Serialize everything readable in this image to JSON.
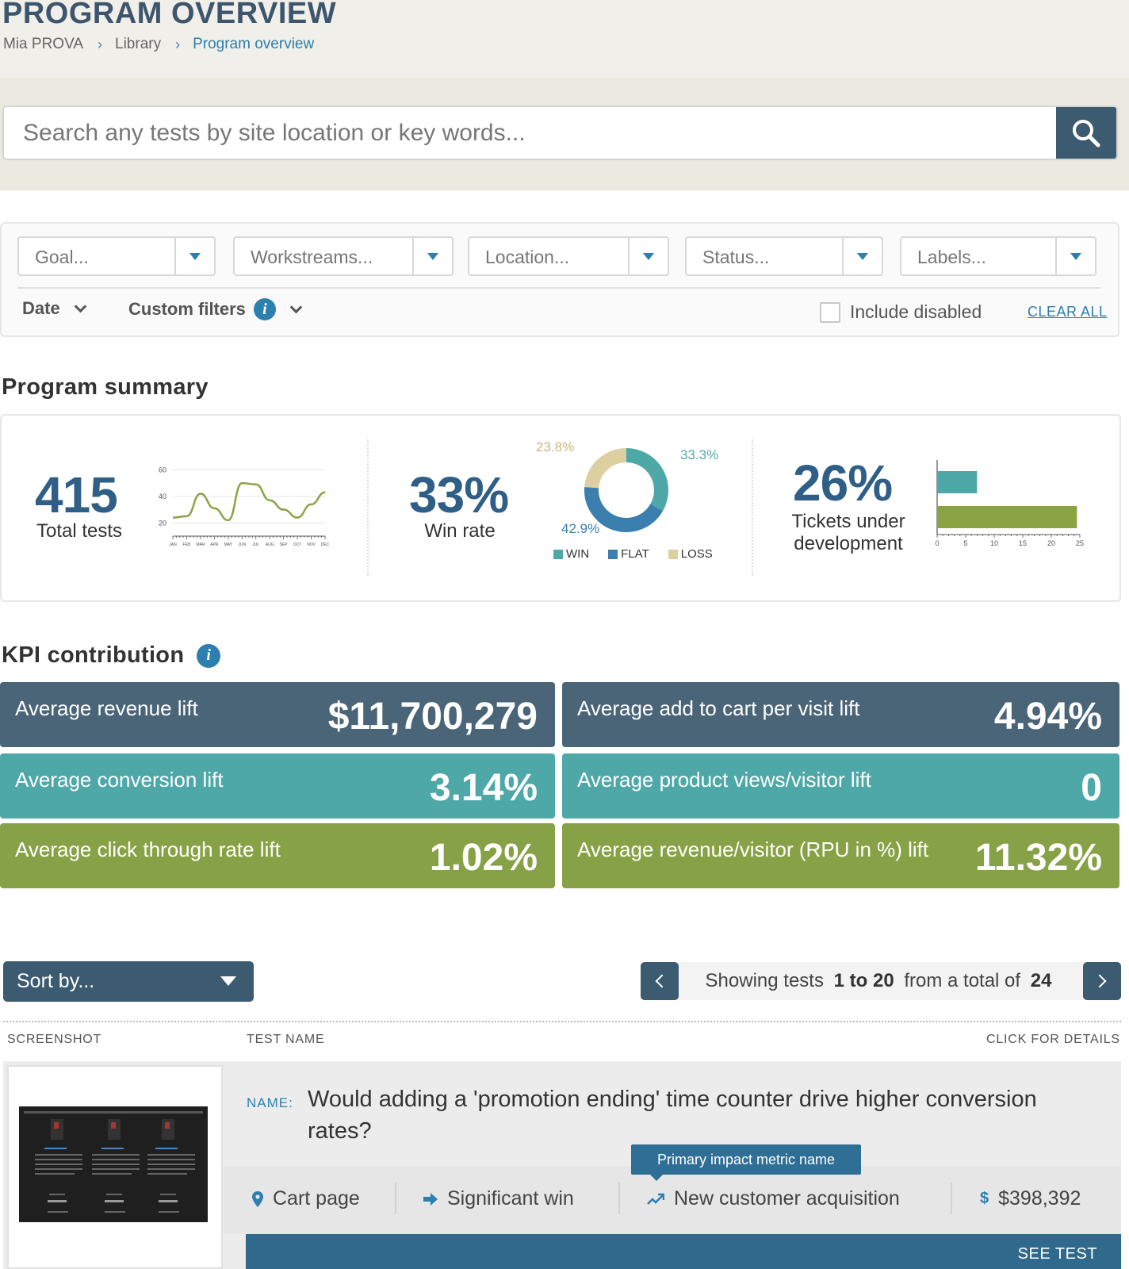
{
  "header": {
    "title": "PROGRAM OVERVIEW",
    "breadcrumb": [
      "Mia PROVA",
      "Library",
      "Program overview"
    ]
  },
  "search": {
    "placeholder": "Search any tests by site location or key words..."
  },
  "filters": {
    "selects": [
      "Goal...",
      "Workstreams...",
      "Location...",
      "Status...",
      "Labels..."
    ],
    "date_label": "Date",
    "custom_filters_label": "Custom filters",
    "include_disabled_label": "Include disabled",
    "include_disabled_checked": false,
    "clear_all_label": "CLEAR ALL"
  },
  "summary": {
    "title": "Program summary",
    "total_tests": {
      "value": "415",
      "label": "Total tests"
    },
    "win_rate": {
      "value": "33%",
      "label": "Win rate"
    },
    "tickets": {
      "value": "26%",
      "label_line1": "Tickets under",
      "label_line2": "development"
    }
  },
  "chart_data": [
    {
      "type": "line",
      "title": "",
      "x": [
        "JAN",
        "FEB",
        "MAR",
        "APR",
        "MAY",
        "JUN",
        "JUL",
        "AUG",
        "SEP",
        "OCT",
        "NOV",
        "DEC"
      ],
      "y_ticks": [
        "60",
        "40",
        "20"
      ],
      "ylim": [
        10,
        65
      ],
      "series": [
        {
          "values": [
            24,
            25,
            42,
            31,
            22,
            50,
            49,
            37,
            30,
            24,
            34,
            43
          ]
        }
      ],
      "grid": true,
      "color": "#8aa444"
    },
    {
      "type": "pie",
      "title": "",
      "slices": [
        {
          "label": "WIN",
          "value": 33.3,
          "display": "33.3%",
          "color": "#4fa8a8"
        },
        {
          "label": "FLAT",
          "value": 42.9,
          "display": "42.9%",
          "color": "#3b7fae"
        },
        {
          "label": "LOSS",
          "value": 23.8,
          "display": "23.8%",
          "color": "#dccfa0"
        }
      ],
      "donut": true,
      "legend": "bottom"
    },
    {
      "type": "bar",
      "title": "",
      "orientation": "horizontal",
      "values": [
        7,
        24.5
      ],
      "colors": [
        "#4fa8a8",
        "#8aa444"
      ],
      "x_ticks": [
        "0",
        "5",
        "10",
        "15",
        "20",
        "25"
      ],
      "xlim": [
        0,
        25
      ]
    }
  ],
  "kpi": {
    "title": "KPI contribution",
    "items": [
      {
        "label": "Average revenue lift",
        "value": "$11,700,279",
        "color": "#4a6478"
      },
      {
        "label": "Average add to cart per visit lift",
        "value": "4.94%",
        "color": "#4a6478"
      },
      {
        "label": "Average conversion lift",
        "value": "3.14%",
        "color": "#4fa8a8"
      },
      {
        "label": "Average product views/visitor lift",
        "value": "0",
        "color": "#4fa8a8"
      },
      {
        "label": "Average click through rate lift",
        "value": "1.02%",
        "color": "#87a246"
      },
      {
        "label": "Average revenue/visitor (RPU in %) lift",
        "value": "11.32%",
        "color": "#87a246"
      }
    ]
  },
  "list": {
    "sort_label": "Sort by...",
    "pager": {
      "prefix": "Showing tests ",
      "range": "1 to 20",
      "middle": " from a total of ",
      "total": "24"
    },
    "columns": {
      "screenshot": "SCREENSHOT",
      "test_name": "TEST NAME",
      "details": "CLICK FOR DETAILS"
    },
    "rows": [
      {
        "name_label": "NAME:",
        "name": "Would adding a 'promotion ending' time counter drive higher conversion rates?",
        "tooltip": "Primary impact metric name",
        "location": "Cart page",
        "status": "Significant win",
        "metric": "New customer acquisition",
        "value": "$398,392",
        "see_test_label": "SEE TEST"
      }
    ]
  }
}
